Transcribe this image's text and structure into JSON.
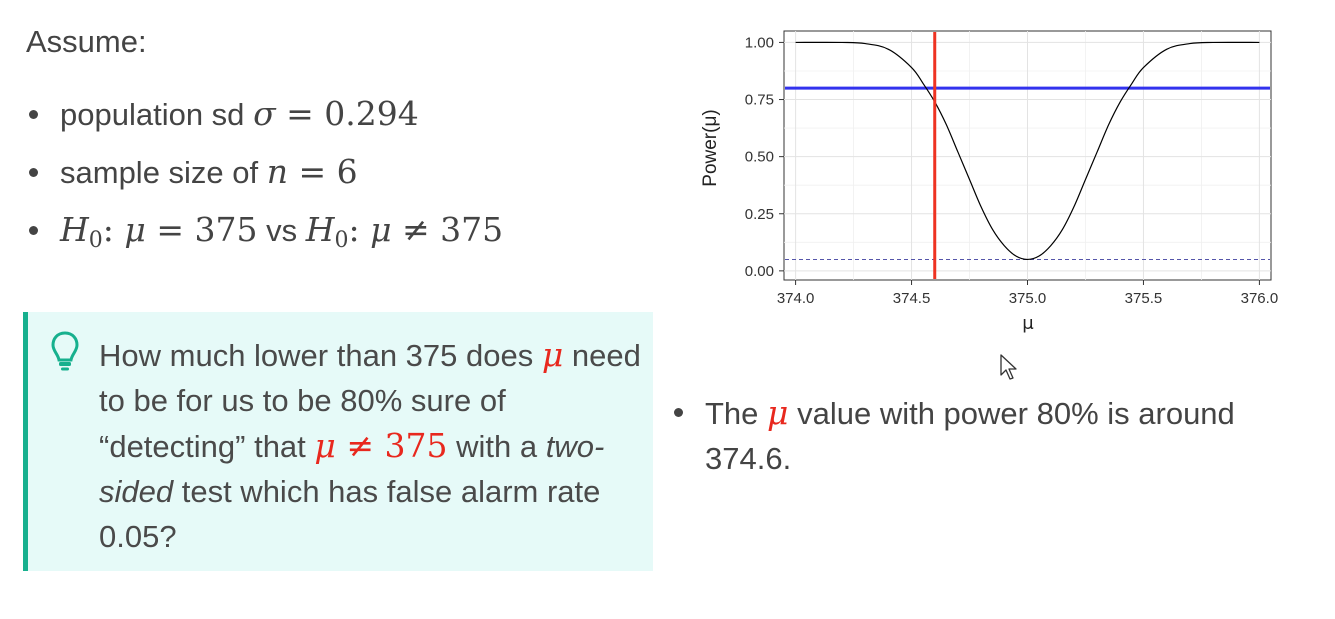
{
  "assume_label": "Assume:",
  "bullets": {
    "sd_prefix": "population sd",
    "sd_symbol": "σ",
    "sd_eq": " = 0.294",
    "n_prefix": "sample size of",
    "n_symbol": "n",
    "n_eq": " = 6",
    "h_symbol": "H",
    "h_sub": "0",
    "h_mu": "μ",
    "h_null": " = 375",
    "vs": " vs ",
    "h_alt": " ≠ 375"
  },
  "callout": {
    "part1": "How much lower than 375 does ",
    "mu": "μ",
    "part2": " need to be for us to be 80% sure of “detecting” that ",
    "expr_mu": "μ",
    "expr_rest": " ≠ 375",
    "part3": " with a ",
    "italic": "two-sided",
    "part4": " test which has false alarm rate 0.05?"
  },
  "note": {
    "part1": "The ",
    "mu": "μ",
    "part2": " value with power 80% is around 374.6."
  },
  "chart_data": {
    "type": "line",
    "xlabel": "μ",
    "ylabel": "Power(μ)",
    "xlim": [
      373.95,
      376.05
    ],
    "ylim": [
      -0.04,
      1.05
    ],
    "x_ticks": [
      "374.0",
      "374.5",
      "375.0",
      "375.5",
      "376.0"
    ],
    "y_ticks": [
      "0.00",
      "0.25",
      "0.50",
      "0.75",
      "1.00"
    ],
    "grid": true,
    "series": [
      {
        "x": [
          374.0,
          374.2,
          374.3,
          374.4,
          374.5,
          374.55,
          374.6,
          374.65,
          374.7,
          374.75,
          374.8,
          374.85,
          374.9,
          374.95,
          375.0,
          375.05,
          375.1,
          375.15,
          375.2,
          375.25,
          375.3,
          375.35,
          375.4,
          375.45,
          375.5,
          375.6,
          375.7,
          375.8,
          376.0
        ],
        "y": [
          1.0,
          1.0,
          0.995,
          0.97,
          0.89,
          0.82,
          0.74,
          0.64,
          0.52,
          0.4,
          0.28,
          0.18,
          0.11,
          0.065,
          0.05,
          0.065,
          0.11,
          0.18,
          0.28,
          0.4,
          0.52,
          0.64,
          0.74,
          0.82,
          0.89,
          0.97,
          0.995,
          1.0,
          1.0
        ],
        "color": "#000000"
      }
    ],
    "hlines": [
      {
        "y": 0.8,
        "color": "#3333ee",
        "style": "solid"
      },
      {
        "y": 0.05,
        "color": "#5555aa",
        "style": "dashed"
      }
    ],
    "vlines": [
      {
        "x": 374.6,
        "color": "#ee3322",
        "style": "solid"
      }
    ]
  }
}
